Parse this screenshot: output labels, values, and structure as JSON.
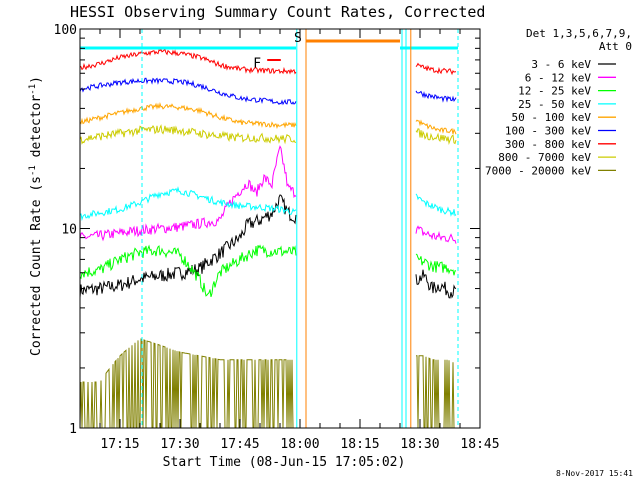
{
  "chart_data": {
    "type": "line",
    "title": "HESSI Observing Summary Count Rates, Corrected",
    "xlabel": "Start Time (08-Jun-15 17:05:02)",
    "ylabel_main": "Corrected Count Rate (s",
    "ylabel_sup1": "-1",
    "ylabel_mid": " detector",
    "ylabel_sup2": "-1",
    "ylabel_end": ")",
    "y_scale": "log",
    "ylim": [
      1,
      100
    ],
    "xlim_minutes": [
      0,
      100
    ],
    "x_tick_labels": [
      "17:15",
      "17:30",
      "17:45",
      "18:00",
      "18:15",
      "18:30",
      "18:45"
    ],
    "x_tick_minutes": [
      10,
      25,
      40,
      55,
      70,
      85,
      100
    ],
    "y_tick_labels": [
      "1",
      "10",
      "100"
    ],
    "y_tick_values": [
      1,
      10,
      100
    ],
    "legend_header": [
      "Det 1,3,5,6,7,9,",
      "Att 0"
    ],
    "legend_placement": "right",
    "grid": false,
    "series": [
      {
        "name": "3 - 6 keV",
        "color": "#000000",
        "x": [
          0,
          5,
          10,
          15,
          20,
          25,
          30,
          35,
          40,
          42,
          45,
          48,
          50,
          52,
          54,
          84,
          86,
          88,
          90,
          92,
          94
        ],
        "y": [
          4.9,
          5.0,
          5.2,
          5.6,
          5.8,
          6.0,
          6.3,
          7.5,
          9.0,
          10.5,
          11.0,
          12.0,
          14.0,
          12.0,
          11.5,
          5.5,
          5.8,
          5.0,
          5.2,
          4.9,
          4.8
        ]
      },
      {
        "name": "6 - 12 keV",
        "color": "#ff00ff",
        "x": [
          0,
          5,
          10,
          15,
          20,
          25,
          30,
          35,
          37,
          40,
          42,
          44,
          46,
          48,
          50,
          52,
          54,
          84,
          86,
          88,
          90,
          92,
          94
        ],
        "y": [
          9.0,
          9.2,
          9.5,
          9.8,
          10.0,
          10.2,
          10.6,
          11.0,
          13.0,
          15.5,
          17.0,
          15.0,
          18.0,
          16.5,
          25.0,
          16.0,
          15.0,
          10.0,
          9.5,
          9.2,
          9.0,
          9.0,
          8.8
        ]
      },
      {
        "name": "12 - 25 keV",
        "color": "#00ff00",
        "x": [
          0,
          5,
          10,
          15,
          20,
          25,
          30,
          32,
          35,
          40,
          44,
          84,
          86,
          88,
          90,
          92,
          94
        ],
        "y": [
          6.0,
          6.2,
          7.0,
          7.6,
          7.8,
          7.4,
          5.5,
          4.5,
          6.0,
          7.0,
          7.8,
          7.0,
          6.8,
          6.5,
          6.4,
          6.4,
          6.2
        ]
      },
      {
        "name": "25 - 50 keV",
        "color": "#00ffff",
        "x": [
          0,
          5,
          10,
          15,
          20,
          25,
          30,
          35,
          40,
          45,
          50,
          54,
          84,
          86,
          88,
          90,
          92,
          94
        ],
        "y": [
          11.5,
          12.0,
          12.5,
          13.5,
          15.0,
          15.5,
          14.5,
          13.5,
          13.0,
          12.8,
          12.5,
          12.0,
          14.5,
          13.5,
          13.0,
          12.5,
          12.2,
          12.0
        ]
      },
      {
        "name": "50 - 100 keV",
        "color": "#ffa500",
        "x": [
          0,
          5,
          10,
          15,
          20,
          25,
          30,
          35,
          40,
          45,
          50,
          54,
          84,
          86,
          88,
          90,
          92,
          94
        ],
        "y": [
          34,
          36,
          38,
          40,
          41,
          40.5,
          39,
          36,
          34,
          33.5,
          33,
          33,
          35,
          33,
          32,
          31,
          31,
          30.5
        ]
      },
      {
        "name": "100 - 300 keV",
        "color": "#0000ff",
        "x": [
          0,
          5,
          10,
          15,
          20,
          25,
          30,
          35,
          40,
          45,
          50,
          54,
          84,
          86,
          88,
          90,
          92,
          94
        ],
        "y": [
          50,
          52,
          54,
          55,
          55,
          54.5,
          52,
          48,
          45,
          44,
          43,
          43,
          49,
          47,
          46,
          45,
          44.5,
          44
        ]
      },
      {
        "name": "300 - 800 keV",
        "color": "#ff0000",
        "x": [
          0,
          5,
          10,
          15,
          20,
          25,
          30,
          35,
          40,
          45,
          50,
          54,
          84,
          86,
          88,
          90,
          92,
          94
        ],
        "y": [
          64,
          67,
          72,
          75,
          77,
          75.5,
          72,
          66,
          63,
          62,
          61.5,
          61.5,
          66,
          64,
          62.5,
          62,
          61.5,
          61
        ]
      },
      {
        "name": "800 - 7000 keV",
        "color": "#cccc00",
        "x": [
          0,
          5,
          10,
          15,
          20,
          25,
          30,
          35,
          40,
          45,
          50,
          54,
          84,
          86,
          88,
          90,
          92,
          94
        ],
        "y": [
          28,
          29,
          30,
          31,
          31.5,
          31,
          30,
          29,
          28.5,
          28.5,
          28.2,
          28.2,
          30.5,
          29.5,
          29,
          28.5,
          28.2,
          28
        ]
      },
      {
        "name": "7000 - 20000 keV",
        "color": "#808000",
        "x": [
          0,
          5,
          10,
          15,
          20,
          25,
          30,
          35,
          40,
          45,
          50,
          54,
          84,
          86,
          88,
          90,
          92,
          94
        ],
        "y": [
          1.7,
          1.7,
          2.3,
          2.8,
          2.6,
          2.4,
          2.3,
          2.2,
          2.2,
          2.2,
          2.2,
          2.2,
          2.3,
          2.3,
          2.2,
          2.2,
          2.2,
          2.1
        ]
      }
    ],
    "annotations": [
      {
        "text": "S",
        "x_minutes": 56.0,
        "y": 90,
        "color": "#ffa500"
      },
      {
        "text": "F",
        "x_minutes": 45.8,
        "y": 67,
        "color": "#ff0000"
      }
    ]
  },
  "footer_date": "8-Nov-2017 15:41"
}
